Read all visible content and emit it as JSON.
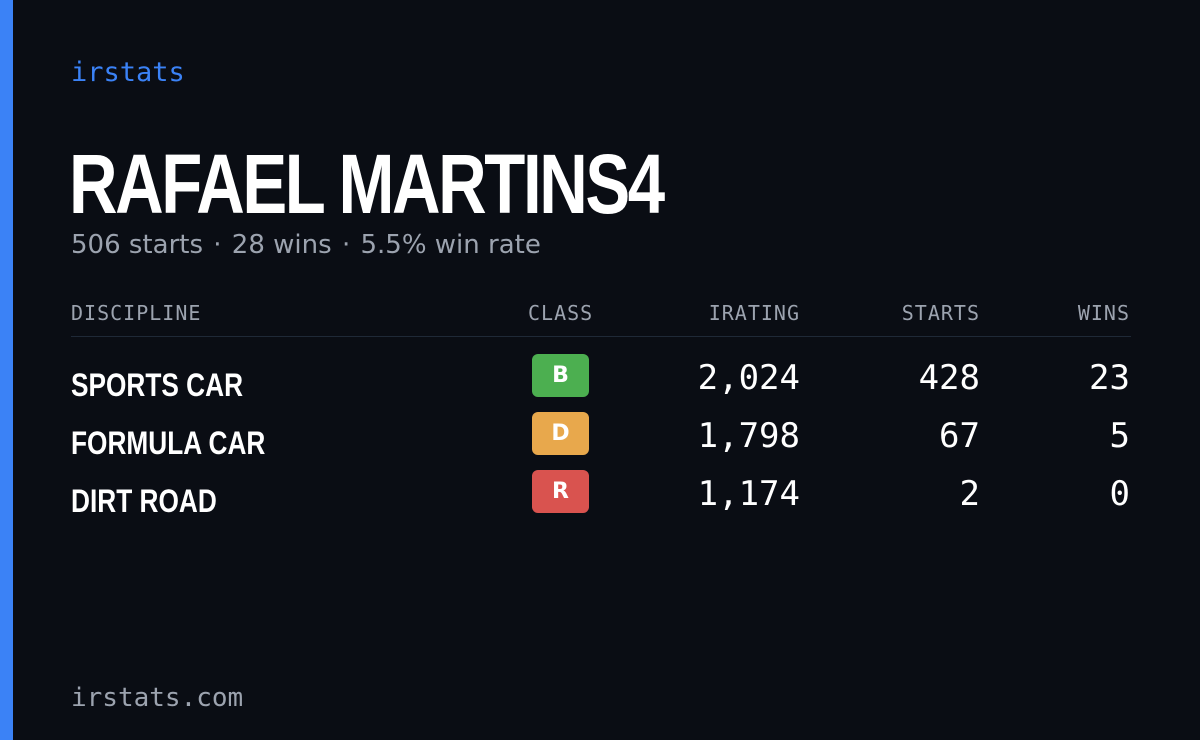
{
  "brand": "irstats",
  "driver": {
    "name": "RAFAEL MARTINS4"
  },
  "summary": {
    "starts": "506 starts",
    "wins": "28 wins",
    "win_rate": "5.5% win rate",
    "separator": "·"
  },
  "table": {
    "headers": {
      "discipline": "DISCIPLINE",
      "class": "CLASS",
      "irating": "IRATING",
      "starts": "STARTS",
      "wins": "WINS"
    },
    "rows": [
      {
        "discipline": "SPORTS CAR",
        "class": "B",
        "class_color": "#4caf50",
        "irating": "2,024",
        "starts": "428",
        "wins": "23"
      },
      {
        "discipline": "FORMULA CAR",
        "class": "D",
        "class_color": "#e8a84c",
        "irating": "1,798",
        "starts": "67",
        "wins": "5"
      },
      {
        "discipline": "DIRT ROAD",
        "class": "R",
        "class_color": "#d9534f",
        "irating": "1,174",
        "starts": "2",
        "wins": "0"
      }
    ]
  },
  "footer": {
    "url": "irstats.com"
  },
  "colors": {
    "accent": "#3b82f6",
    "background": "#0a0d14",
    "muted_text": "#9ca3af"
  }
}
